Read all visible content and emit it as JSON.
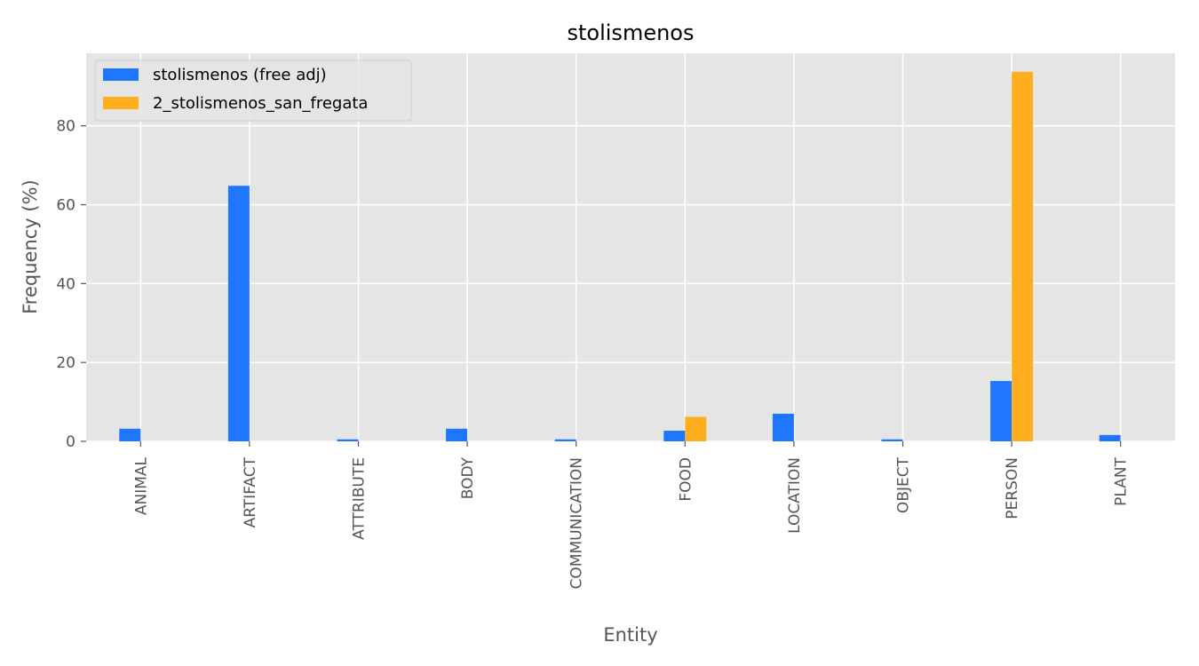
{
  "chart_data": {
    "type": "bar",
    "title": "stolismenos",
    "xlabel": "Entity",
    "ylabel": "Frequency (%)",
    "categories": [
      "ANIMAL",
      "ARTIFACT",
      "ATTRIBUTE",
      "BODY",
      "COMMUNICATION",
      "FOOD",
      "LOCATION",
      "OBJECT",
      "PERSON",
      "PLANT"
    ],
    "series": [
      {
        "name": "stolismenos (free adj)",
        "color": "#1f77ff",
        "values": [
          3.2,
          64.8,
          0.5,
          3.2,
          0.5,
          2.7,
          7.0,
          0.5,
          15.3,
          1.6
        ]
      },
      {
        "name": "2_stolismenos_san_fregata",
        "color": "#ffae20",
        "values": [
          0,
          0,
          0,
          0,
          0,
          6.2,
          0,
          0,
          93.7,
          0
        ]
      }
    ],
    "ylim": [
      0,
      98.4
    ],
    "yticks": [
      0,
      20,
      40,
      60,
      80
    ],
    "grid": true,
    "legend_position": "top-left",
    "background": "#e5e5e5"
  }
}
